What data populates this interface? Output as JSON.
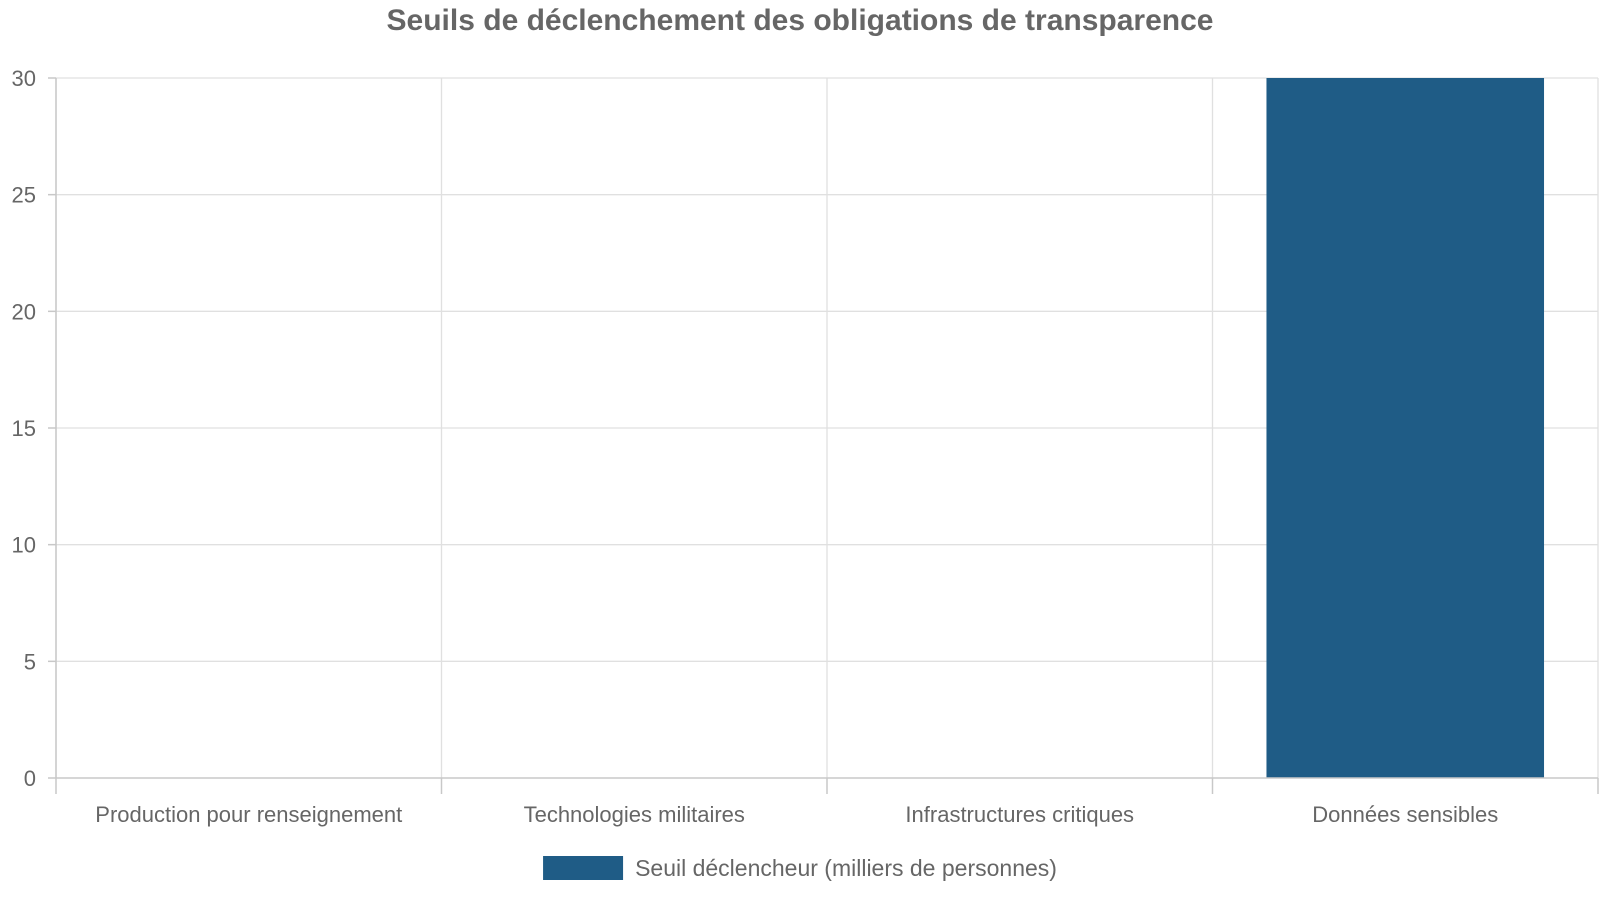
{
  "chart_data": {
    "type": "bar",
    "title": "Seuils de déclenchement des obligations de transparence",
    "xlabel": "",
    "ylabel": "",
    "categories": [
      "Production pour renseignement",
      "Technologies militaires",
      "Infrastructures critiques",
      "Données sensibles"
    ],
    "series": [
      {
        "name": "Seuil déclencheur (milliers de personnes)",
        "values": [
          0,
          0,
          0,
          30
        ],
        "color": "#1f5c86"
      }
    ],
    "ylim": [
      0,
      30
    ],
    "yticks": [
      0,
      5,
      10,
      15,
      20,
      25,
      30
    ],
    "grid": true,
    "legend": "bottom-center"
  }
}
